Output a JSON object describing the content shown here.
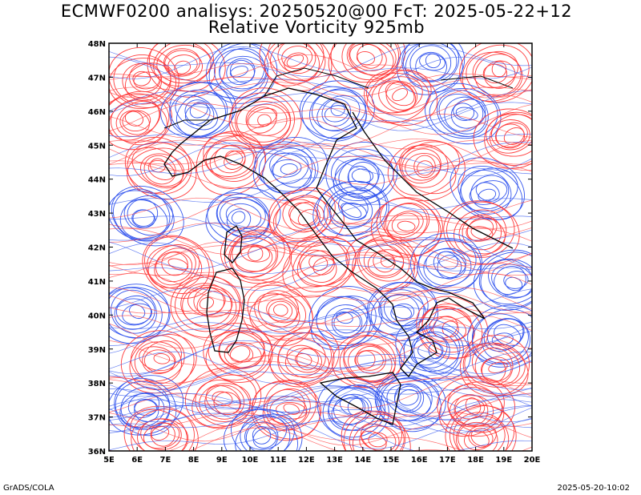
{
  "title_line1": "ECMWF0200 analisys: 20250520@00 FcT: 2025-05-22+12",
  "title_line2": "Relative Vorticity 925mb",
  "footer_left": "GrADS/COLA",
  "footer_right": "2025-05-20-10:02",
  "lat_labels": [
    "48N",
    "47N",
    "46N",
    "45N",
    "44N",
    "43N",
    "42N",
    "41N",
    "40N",
    "39N",
    "38N",
    "37N",
    "36N"
  ],
  "lon_labels": [
    "5E",
    "6E",
    "7E",
    "8E",
    "9E",
    "10E",
    "11E",
    "12E",
    "13E",
    "14E",
    "15E",
    "16E",
    "17E",
    "18E",
    "19E",
    "20E"
  ],
  "colors": {
    "positive": "#ff3b3b",
    "negative": "#3355ee",
    "coast": "#000000"
  }
}
